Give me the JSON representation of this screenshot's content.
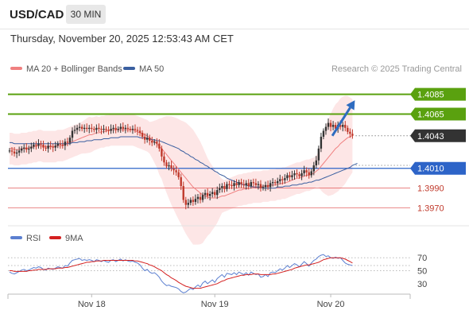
{
  "header": {
    "symbol": "USD/CAD",
    "timeframe": "30 MIN",
    "datetime": "Thursday, November 20, 2025 12:53:43 AM CET"
  },
  "copyright": "Research © 2025 Trading Central",
  "colors": {
    "resistance": "#5aa10f",
    "support": "#2d64c8",
    "support_minor": "#e05050",
    "current": "#333333",
    "ma20": "#f08080",
    "ma50": "#3a5fa0",
    "bollinger_fill": "#fde0e0",
    "candle_up": "#333333",
    "candle_down": "#c0392b",
    "rsi": "#5b7fd0",
    "rsi_ma": "#d42020",
    "arrow": "#2f6cc0"
  },
  "chart_data": [
    {
      "type": "candlestick",
      "title": "",
      "legend": [
        {
          "name": "MA 20 + Bollinger Bands",
          "color": "#f08080"
        },
        {
          "name": "MA 50",
          "color": "#3a5fa0"
        }
      ],
      "legend_position": "top-left",
      "y_range": [
        1.3955,
        1.41
      ],
      "x_range": [
        0,
        158
      ],
      "x_tick_labels": [
        {
          "x": 34,
          "label": "Nov 18"
        },
        {
          "x": 85,
          "label": "Nov 19"
        },
        {
          "x": 133,
          "label": "Nov 20"
        }
      ],
      "levels": [
        {
          "value": 1.4085,
          "label": "1.4085",
          "kind": "resistance"
        },
        {
          "value": 1.4065,
          "label": "1.4065",
          "kind": "resistance"
        },
        {
          "value": 1.4043,
          "label": "1.4043",
          "kind": "current"
        },
        {
          "value": 1.401,
          "label": "1.4010",
          "kind": "support"
        },
        {
          "value": 1.399,
          "label": "1.3990",
          "kind": "support_minor"
        },
        {
          "value": 1.397,
          "label": "1.3970",
          "kind": "support_minor"
        }
      ],
      "projection_arrow": {
        "from": [
          133,
          1.4043
        ],
        "to": [
          143,
          1.4079
        ]
      },
      "close_series": [
        1.4028,
        1.4027,
        1.4025,
        1.4026,
        1.4028,
        1.403,
        1.4031,
        1.4029,
        1.403,
        1.4032,
        1.4034,
        1.4033,
        1.4035,
        1.4034,
        1.4031,
        1.403,
        1.4033,
        1.4032,
        1.4031,
        1.4033,
        1.4035,
        1.4034,
        1.4033,
        1.4037,
        1.4036,
        1.4041,
        1.4048,
        1.4049,
        1.4051,
        1.4052,
        1.405,
        1.4051,
        1.405,
        1.4051,
        1.405,
        1.4049,
        1.4051,
        1.405,
        1.4049,
        1.405,
        1.4049,
        1.4048,
        1.405,
        1.4051,
        1.4049,
        1.405,
        1.4052,
        1.405,
        1.4051,
        1.405,
        1.4049,
        1.405,
        1.4049,
        1.4048,
        1.4046,
        1.4042,
        1.4039,
        1.4041,
        1.4038,
        1.4036,
        1.4037,
        1.4035,
        1.403,
        1.4022,
        1.4016,
        1.4012,
        1.4013,
        1.401,
        1.4008,
        1.4006,
        1.4001,
        1.3992,
        1.3978,
        1.3973,
        1.3975,
        1.3978,
        1.3976,
        1.3979,
        1.3981,
        1.3978,
        1.3983,
        1.3985,
        1.3982,
        1.3984,
        1.3986,
        1.3983,
        1.3988,
        1.399,
        1.3992,
        1.3989,
        1.3994,
        1.3993,
        1.3992,
        1.3995,
        1.3993,
        1.3996,
        1.3994,
        1.3993,
        1.3995,
        1.3992,
        1.3996,
        1.3995,
        1.3993,
        1.3994,
        1.399,
        1.3991,
        1.3993,
        1.3991,
        1.3995,
        1.3996,
        1.3995,
        1.3997,
        1.3999,
        1.3998,
        1.4,
        1.4003,
        1.4001,
        1.4003,
        1.4005,
        1.4004,
        1.4002,
        1.4005,
        1.4008,
        1.4006,
        1.4003,
        1.4007,
        1.4013,
        1.4018,
        1.403,
        1.4042,
        1.4048,
        1.4052,
        1.4056,
        1.4052,
        1.4054,
        1.405,
        1.4054,
        1.4052,
        1.4054,
        1.4051,
        1.4047,
        1.4045,
        1.4043
      ],
      "ma20_series": [
        1.403,
        1.403,
        1.4029,
        1.4029,
        1.4029,
        1.403,
        1.403,
        1.403,
        1.4031,
        1.4031,
        1.4032,
        1.4032,
        1.4033,
        1.4033,
        1.4032,
        1.4032,
        1.4032,
        1.4032,
        1.4032,
        1.4032,
        1.4033,
        1.4033,
        1.4033,
        1.4034,
        1.4035,
        1.4036,
        1.4037,
        1.4038,
        1.4039,
        1.404,
        1.4041,
        1.4042,
        1.4043,
        1.4044,
        1.4044,
        1.4045,
        1.4046,
        1.4046,
        1.4047,
        1.4047,
        1.4048,
        1.4048,
        1.4049,
        1.4049,
        1.4049,
        1.4049,
        1.4049,
        1.4049,
        1.4049,
        1.4049,
        1.4049,
        1.4049,
        1.4048,
        1.4047,
        1.4046,
        1.4045,
        1.4044,
        1.4043,
        1.4041,
        1.4039,
        1.4037,
        1.4035,
        1.4032,
        1.403,
        1.4027,
        1.4024,
        1.4021,
        1.4018,
        1.4015,
        1.4012,
        1.4009,
        1.4006,
        1.4003,
        1.4,
        1.3997,
        1.3994,
        1.3991,
        1.3989,
        1.3987,
        1.3985,
        1.3983,
        1.3982,
        1.3981,
        1.398,
        1.398,
        1.398,
        1.398,
        1.3981,
        1.3982,
        1.3982,
        1.3983,
        1.3984,
        1.3985,
        1.3986,
        1.3987,
        1.3988,
        1.3988,
        1.3989,
        1.3989,
        1.399,
        1.399,
        1.3991,
        1.3991,
        1.3991,
        1.3991,
        1.3992,
        1.3992,
        1.3992,
        1.3993,
        1.3993,
        1.3993,
        1.3994,
        1.3994,
        1.3995,
        1.3995,
        1.3996,
        1.3997,
        1.3998,
        1.3999,
        1.4,
        1.4,
        1.4001,
        1.4002,
        1.4003,
        1.4003,
        1.4004,
        1.4005,
        1.4007,
        1.4009,
        1.4012,
        1.4015,
        1.4018,
        1.4021,
        1.4024,
        1.4027,
        1.403,
        1.4032,
        1.4035,
        1.4037,
        1.4039,
        1.4041,
        1.4042,
        1.4043
      ],
      "ma50_series": [
        1.4036,
        1.4036,
        1.4035,
        1.4035,
        1.4035,
        1.4035,
        1.4035,
        1.4035,
        1.4035,
        1.4035,
        1.4035,
        1.4035,
        1.4035,
        1.4035,
        1.4035,
        1.4035,
        1.4035,
        1.4035,
        1.4035,
        1.4035,
        1.4035,
        1.4035,
        1.4035,
        1.4035,
        1.4035,
        1.4035,
        1.4036,
        1.4036,
        1.4036,
        1.4037,
        1.4037,
        1.4037,
        1.4038,
        1.4038,
        1.4038,
        1.4039,
        1.4039,
        1.4039,
        1.4039,
        1.404,
        1.404,
        1.404,
        1.4041,
        1.4041,
        1.4041,
        1.4041,
        1.4042,
        1.4042,
        1.4042,
        1.4042,
        1.4042,
        1.4042,
        1.4042,
        1.4042,
        1.4041,
        1.4041,
        1.4041,
        1.404,
        1.404,
        1.4039,
        1.4039,
        1.4038,
        1.4038,
        1.4037,
        1.4036,
        1.4035,
        1.4034,
        1.4033,
        1.4032,
        1.4031,
        1.403,
        1.4028,
        1.4027,
        1.4025,
        1.4024,
        1.4022,
        1.4021,
        1.4019,
        1.4018,
        1.4016,
        1.4015,
        1.4013,
        1.4012,
        1.401,
        1.4009,
        1.4007,
        1.4006,
        1.4004,
        1.4003,
        1.4002,
        1.4,
        1.3999,
        1.3998,
        1.3997,
        1.3996,
        1.3995,
        1.3994,
        1.3993,
        1.3993,
        1.3992,
        1.3992,
        1.3991,
        1.3991,
        1.3991,
        1.3991,
        1.399,
        1.399,
        1.399,
        1.399,
        1.399,
        1.399,
        1.3991,
        1.3991,
        1.3991,
        1.3992,
        1.3992,
        1.3992,
        1.3993,
        1.3993,
        1.3993,
        1.3994,
        1.3994,
        1.3995,
        1.3995,
        1.3996,
        1.3996,
        1.3997,
        1.3998,
        1.3998,
        1.3999,
        1.4,
        1.4001,
        1.4002,
        1.4003,
        1.4004,
        1.4005,
        1.4006,
        1.4007,
        1.4008,
        1.4009,
        1.401,
        1.4011,
        1.4013,
        1.4014,
        1.4015
      ]
    },
    {
      "type": "line",
      "title": "",
      "legend": [
        {
          "name": "RSI",
          "color": "#5b7fd0"
        },
        {
          "name": "9MA",
          "color": "#d42020"
        }
      ],
      "legend_position": "top-left",
      "y_range": [
        20,
        85
      ],
      "y_ticks": [
        70,
        50,
        30
      ],
      "guide_levels": [
        70,
        58,
        50
      ],
      "rsi_series": [
        48,
        46,
        45,
        47,
        49,
        51,
        52,
        50,
        51,
        53,
        55,
        54,
        56,
        55,
        52,
        51,
        54,
        53,
        52,
        54,
        56,
        55,
        54,
        58,
        57,
        62,
        66,
        67,
        68,
        69,
        66,
        67,
        66,
        67,
        66,
        64,
        67,
        66,
        64,
        66,
        64,
        63,
        66,
        67,
        64,
        66,
        68,
        65,
        67,
        65,
        64,
        65,
        63,
        62,
        59,
        54,
        50,
        52,
        48,
        46,
        47,
        44,
        40,
        34,
        30,
        27,
        28,
        26,
        25,
        24,
        22,
        18,
        16,
        17,
        20,
        23,
        21,
        25,
        28,
        25,
        31,
        34,
        30,
        33,
        36,
        32,
        38,
        41,
        44,
        40,
        46,
        45,
        44,
        47,
        44,
        48,
        46,
        44,
        47,
        43,
        48,
        46,
        44,
        45,
        40,
        41,
        44,
        41,
        47,
        48,
        47,
        50,
        53,
        51,
        54,
        58,
        55,
        58,
        61,
        59,
        56,
        60,
        64,
        61,
        57,
        62,
        66,
        68,
        72,
        74,
        75,
        72,
        73,
        70,
        69,
        71,
        69,
        70,
        66,
        62,
        60,
        59,
        58
      ],
      "rsi_ma_series": [
        50,
        50,
        49,
        49,
        49,
        49,
        49,
        49,
        50,
        50,
        51,
        51,
        52,
        52,
        52,
        52,
        53,
        53,
        53,
        53,
        54,
        54,
        54,
        55,
        55,
        56,
        57,
        58,
        59,
        60,
        61,
        62,
        63,
        63,
        64,
        64,
        65,
        65,
        65,
        66,
        66,
        66,
        66,
        66,
        66,
        66,
        66,
        66,
        66,
        66,
        66,
        66,
        65,
        65,
        64,
        63,
        62,
        61,
        59,
        58,
        56,
        54,
        52,
        50,
        47,
        44,
        42,
        39,
        37,
        35,
        32,
        30,
        28,
        26,
        25,
        24,
        23,
        23,
        23,
        23,
        24,
        25,
        26,
        27,
        28,
        29,
        30,
        32,
        34,
        35,
        37,
        38,
        39,
        40,
        41,
        42,
        43,
        43,
        44,
        44,
        44,
        45,
        45,
        45,
        44,
        44,
        44,
        44,
        44,
        45,
        45,
        46,
        47,
        48,
        49,
        50,
        51,
        52,
        54,
        55,
        56,
        57,
        58,
        59,
        59,
        60,
        61,
        62,
        63,
        65,
        67,
        68,
        69,
        70,
        70,
        70,
        70,
        70,
        69,
        68,
        66,
        64,
        62
      ]
    }
  ]
}
